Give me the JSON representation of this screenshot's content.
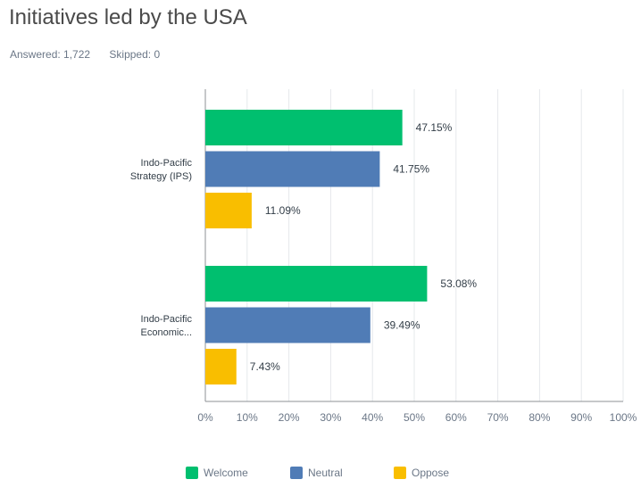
{
  "header": {
    "title": "Initiatives led by the USA",
    "answered": "Answered: 1,722",
    "skipped": "Skipped: 0"
  },
  "chart_data": {
    "type": "bar",
    "orientation": "horizontal",
    "categories": [
      [
        "Indo-Pacific",
        "Strategy (IPS)"
      ],
      [
        "Indo-Pacific",
        "Economic..."
      ]
    ],
    "series": [
      {
        "name": "Welcome",
        "color": "#00bf6f",
        "values": [
          47.15,
          53.08
        ],
        "labels": [
          "47.15%",
          "53.08%"
        ]
      },
      {
        "name": "Neutral",
        "color": "#507cb6",
        "values": [
          41.75,
          39.49
        ],
        "labels": [
          "41.75%",
          "39.49%"
        ]
      },
      {
        "name": "Oppose",
        "color": "#f9be00",
        "values": [
          11.09,
          7.43
        ],
        "labels": [
          "11.09%",
          "7.43%"
        ]
      }
    ],
    "xlim": [
      0,
      100
    ],
    "xticks": [
      "0%",
      "10%",
      "20%",
      "30%",
      "40%",
      "50%",
      "60%",
      "70%",
      "80%",
      "90%",
      "100%"
    ],
    "grid": true,
    "legend_position": "bottom"
  }
}
